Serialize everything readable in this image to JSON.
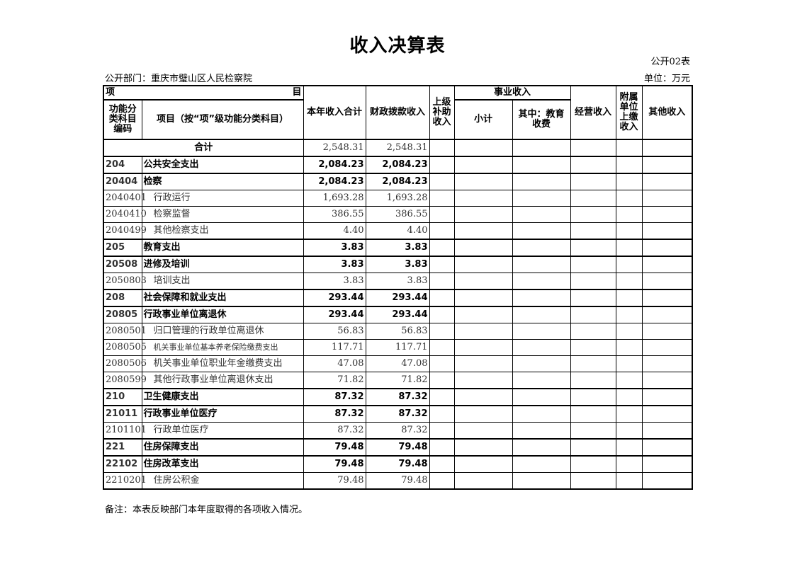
{
  "title": "收入决算表",
  "form_no": "公开02表",
  "department": "公开部门：重庆市璧山区人民检察院",
  "unit": "单位：万元",
  "headers": {
    "item_left": "项",
    "item_right": "目",
    "code": "功能分类科目编码",
    "name": "项目（按“项”级功能分类科目）",
    "total": "本年收入合计",
    "fiscal": "财政拨款收入",
    "superior": "上级补助收入",
    "business": "事业收入",
    "subtotal": "小计",
    "education": "其中：教育收费",
    "operating": "经营收入",
    "affiliated": "附属单位上缴收入",
    "other": "其他收入"
  },
  "total_row": {
    "label": "合计",
    "total": "2,548.31",
    "fiscal": "2,548.31"
  },
  "rows": [
    {
      "code": "204",
      "name": "公共安全支出",
      "total": "2,084.23",
      "fiscal": "2,084.23",
      "bold": true
    },
    {
      "code": "20404",
      "name": "检察",
      "total": "2,084.23",
      "fiscal": "2,084.23",
      "bold": true
    },
    {
      "code": "2040401",
      "name": "行政运行",
      "total": "1,693.28",
      "fiscal": "1,693.28"
    },
    {
      "code": "2040410",
      "name": "检察监督",
      "total": "386.55",
      "fiscal": "386.55"
    },
    {
      "code": "2040499",
      "name": "其他检察支出",
      "total": "4.40",
      "fiscal": "4.40"
    },
    {
      "code": "205",
      "name": "教育支出",
      "total": "3.83",
      "fiscal": "3.83",
      "bold": true
    },
    {
      "code": "20508",
      "name": "进修及培训",
      "total": "3.83",
      "fiscal": "3.83",
      "bold": true
    },
    {
      "code": "2050803",
      "name": "培训支出",
      "total": "3.83",
      "fiscal": "3.83"
    },
    {
      "code": "208",
      "name": "社会保障和就业支出",
      "total": "293.44",
      "fiscal": "293.44",
      "bold": true
    },
    {
      "code": "20805",
      "name": "行政事业单位离退休",
      "total": "293.44",
      "fiscal": "293.44",
      "bold": true
    },
    {
      "code": "2080501",
      "name": "归口管理的行政单位离退休",
      "total": "56.83",
      "fiscal": "56.83"
    },
    {
      "code": "2080505",
      "name": "机关事业单位基本养老保险缴费支出",
      "total": "117.71",
      "fiscal": "117.71",
      "small": true
    },
    {
      "code": "2080506",
      "name": "机关事业单位职业年金缴费支出",
      "total": "47.08",
      "fiscal": "47.08"
    },
    {
      "code": "2080599",
      "name": "其他行政事业单位离退休支出",
      "total": "71.82",
      "fiscal": "71.82"
    },
    {
      "code": "210",
      "name": "卫生健康支出",
      "total": "87.32",
      "fiscal": "87.32",
      "bold": true
    },
    {
      "code": "21011",
      "name": "行政事业单位医疗",
      "total": "87.32",
      "fiscal": "87.32",
      "bold": true
    },
    {
      "code": "2101101",
      "name": "行政单位医疗",
      "total": "87.32",
      "fiscal": "87.32"
    },
    {
      "code": "221",
      "name": "住房保障支出",
      "total": "79.48",
      "fiscal": "79.48",
      "bold": true
    },
    {
      "code": "22102",
      "name": "住房改革支出",
      "total": "79.48",
      "fiscal": "79.48",
      "bold": true
    },
    {
      "code": "2210201",
      "name": "住房公积金",
      "total": "79.48",
      "fiscal": "79.48"
    }
  ],
  "note": "备注：本表反映部门本年度取得的各项收入情况。"
}
